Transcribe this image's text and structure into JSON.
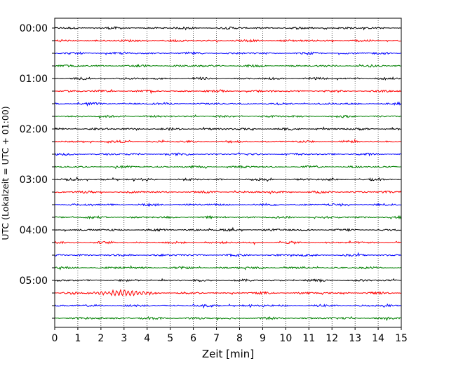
{
  "chart_data": {
    "type": "line",
    "title": "",
    "xlabel": "Zeit  [min]",
    "ylabel": "UTC (Lokalzeit = UTC + 01:00)",
    "xlim": [
      0,
      15
    ],
    "x_ticks": [
      "0",
      "1",
      "2",
      "3",
      "4",
      "5",
      "6",
      "7",
      "8",
      "9",
      "10",
      "11",
      "12",
      "13",
      "14",
      "15"
    ],
    "y_tick_labels": [
      "00:00",
      "01:00",
      "02:00",
      "03:00",
      "04:00",
      "05:00"
    ],
    "trace_interval_minutes": 15,
    "trace_count": 24,
    "trace_colors": [
      "#000000",
      "#ff0000",
      "#0000ff",
      "#008000"
    ],
    "grid_x": true,
    "grid_x_style": "dotted",
    "legend": "none",
    "notable_event": {
      "trace_label": "05:15",
      "x_range_min": [
        1.3,
        4.6
      ],
      "note_amplitude": "large"
    }
  }
}
